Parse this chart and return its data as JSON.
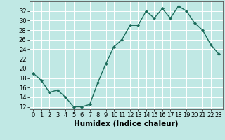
{
  "x": [
    0,
    1,
    2,
    3,
    4,
    5,
    6,
    7,
    8,
    9,
    10,
    11,
    12,
    13,
    14,
    15,
    16,
    17,
    18,
    19,
    20,
    21,
    22,
    23
  ],
  "y": [
    19,
    17.5,
    15,
    15.5,
    14,
    12,
    12,
    12.5,
    17,
    21,
    24.5,
    26,
    29,
    29,
    32,
    30.5,
    32.5,
    30.5,
    33,
    32,
    29.5,
    28,
    25,
    23
  ],
  "line_color": "#1a6b5a",
  "marker_color": "#1a6b5a",
  "bg_color": "#c0e8e4",
  "grid_color": "#ffffff",
  "xlabel": "Humidex (Indice chaleur)",
  "xlim": [
    -0.5,
    23.5
  ],
  "ylim": [
    11.5,
    34
  ],
  "yticks": [
    12,
    14,
    16,
    18,
    20,
    22,
    24,
    26,
    28,
    30,
    32
  ],
  "xticks": [
    0,
    1,
    2,
    3,
    4,
    5,
    6,
    7,
    8,
    9,
    10,
    11,
    12,
    13,
    14,
    15,
    16,
    17,
    18,
    19,
    20,
    21,
    22,
    23
  ],
  "tick_fontsize": 6,
  "xlabel_fontsize": 7.5,
  "linewidth": 1.0,
  "markersize": 2.2
}
